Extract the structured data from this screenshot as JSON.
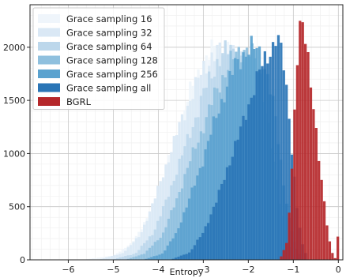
{
  "chart_data": {
    "type": "histogram",
    "title": "",
    "xlabel": "Entropy",
    "ylabel": "",
    "xlim": [
      -6.85,
      0.1
    ],
    "ylim": [
      0,
      2400
    ],
    "xticks": [
      -6,
      -5,
      -4,
      -3,
      -2,
      -1,
      0
    ],
    "xtick_labels": [
      "−6",
      "−5",
      "−4",
      "−3",
      "−2",
      "−1",
      "0"
    ],
    "yticks": [
      0,
      500,
      1000,
      1500,
      2000
    ],
    "ytick_labels": [
      "0",
      "500",
      "1000",
      "1500",
      "2000"
    ],
    "grid": true,
    "legend_position": "upper-left",
    "bin_width": 0.06,
    "series": [
      {
        "name": "Grace sampling 16",
        "color": "#eff5fb",
        "points": [
          [
            -5.6,
            5
          ],
          [
            -5.0,
            40
          ],
          [
            -4.6,
            150
          ],
          [
            -4.2,
            420
          ],
          [
            -3.9,
            780
          ],
          [
            -3.6,
            1150
          ],
          [
            -3.4,
            1450
          ],
          [
            -3.2,
            1680
          ],
          [
            -3.0,
            1850
          ],
          [
            -2.8,
            1970
          ],
          [
            -2.6,
            2000
          ],
          [
            -2.4,
            1960
          ],
          [
            -2.2,
            1800
          ],
          [
            -2.0,
            1500
          ],
          [
            -1.8,
            1000
          ],
          [
            -1.6,
            550
          ],
          [
            -1.4,
            240
          ],
          [
            -1.2,
            80
          ],
          [
            -1.05,
            10
          ]
        ]
      },
      {
        "name": "Grace sampling 32",
        "color": "#dae8f5",
        "points": [
          [
            -5.3,
            5
          ],
          [
            -4.8,
            60
          ],
          [
            -4.4,
            230
          ],
          [
            -4.1,
            550
          ],
          [
            -3.8,
            920
          ],
          [
            -3.5,
            1300
          ],
          [
            -3.2,
            1600
          ],
          [
            -3.0,
            1800
          ],
          [
            -2.8,
            1920
          ],
          [
            -2.6,
            1970
          ],
          [
            -2.45,
            1990
          ],
          [
            -2.3,
            1950
          ],
          [
            -2.1,
            1820
          ],
          [
            -1.9,
            1500
          ],
          [
            -1.75,
            1100
          ],
          [
            -1.6,
            650
          ],
          [
            -1.45,
            300
          ],
          [
            -1.3,
            110
          ],
          [
            -1.15,
            20
          ]
        ]
      },
      {
        "name": "Grace sampling 64",
        "color": "#bcd7eb",
        "points": [
          [
            -5.0,
            5
          ],
          [
            -4.5,
            60
          ],
          [
            -4.1,
            260
          ],
          [
            -3.8,
            580
          ],
          [
            -3.5,
            950
          ],
          [
            -3.2,
            1300
          ],
          [
            -2.95,
            1620
          ],
          [
            -2.7,
            1850
          ],
          [
            -2.5,
            1960
          ],
          [
            -2.35,
            1990
          ],
          [
            -2.2,
            1960
          ],
          [
            -2.05,
            1860
          ],
          [
            -1.9,
            1650
          ],
          [
            -1.75,
            1300
          ],
          [
            -1.6,
            900
          ],
          [
            -1.45,
            500
          ],
          [
            -1.3,
            200
          ],
          [
            -1.15,
            40
          ]
        ]
      },
      {
        "name": "Grace sampling 128",
        "color": "#8fc0de",
        "points": [
          [
            -4.7,
            5
          ],
          [
            -4.3,
            60
          ],
          [
            -3.9,
            240
          ],
          [
            -3.6,
            560
          ],
          [
            -3.3,
            920
          ],
          [
            -3.0,
            1250
          ],
          [
            -2.75,
            1550
          ],
          [
            -2.5,
            1780
          ],
          [
            -2.3,
            1920
          ],
          [
            -2.15,
            1980
          ],
          [
            -2.0,
            1990
          ],
          [
            -1.9,
            1920
          ],
          [
            -1.75,
            1750
          ],
          [
            -1.6,
            1400
          ],
          [
            -1.45,
            950
          ],
          [
            -1.3,
            520
          ],
          [
            -1.15,
            200
          ],
          [
            -1.0,
            40
          ]
        ]
      },
      {
        "name": "Grace sampling 256",
        "color": "#5aa2cf",
        "points": [
          [
            -4.3,
            5
          ],
          [
            -3.9,
            60
          ],
          [
            -3.6,
            250
          ],
          [
            -3.3,
            580
          ],
          [
            -3.0,
            950
          ],
          [
            -2.75,
            1300
          ],
          [
            -2.5,
            1600
          ],
          [
            -2.3,
            1820
          ],
          [
            -2.1,
            1940
          ],
          [
            -1.95,
            1990
          ],
          [
            -1.8,
            1980
          ],
          [
            -1.7,
            1920
          ],
          [
            -1.55,
            1700
          ],
          [
            -1.4,
            1350
          ],
          [
            -1.25,
            850
          ],
          [
            -1.1,
            400
          ],
          [
            -0.95,
            130
          ],
          [
            -0.8,
            20
          ]
        ]
      },
      {
        "name": "Grace sampling all",
        "color": "#2a75b6",
        "points": [
          [
            -3.7,
            5
          ],
          [
            -3.3,
            70
          ],
          [
            -3.0,
            260
          ],
          [
            -2.7,
            560
          ],
          [
            -2.45,
            880
          ],
          [
            -2.2,
            1180
          ],
          [
            -2.0,
            1450
          ],
          [
            -1.85,
            1650
          ],
          [
            -1.7,
            1820
          ],
          [
            -1.55,
            1940
          ],
          [
            -1.45,
            2020
          ],
          [
            -1.38,
            2110
          ],
          [
            -1.3,
            2020
          ],
          [
            -1.2,
            1800
          ],
          [
            -1.1,
            1400
          ],
          [
            -1.0,
            900
          ],
          [
            -0.9,
            450
          ],
          [
            -0.8,
            150
          ],
          [
            -0.7,
            30
          ]
        ]
      },
      {
        "name": "BGRL",
        "color": "#b5272a",
        "points": [
          [
            -1.3,
            5
          ],
          [
            -1.15,
            150
          ],
          [
            -1.05,
            650
          ],
          [
            -0.98,
            1300
          ],
          [
            -0.92,
            1900
          ],
          [
            -0.86,
            2220
          ],
          [
            -0.8,
            2280
          ],
          [
            -0.75,
            2150
          ],
          [
            -0.7,
            1950
          ],
          [
            -0.62,
            1650
          ],
          [
            -0.54,
            1400
          ],
          [
            -0.46,
            1100
          ],
          [
            -0.38,
            800
          ],
          [
            -0.3,
            500
          ],
          [
            -0.22,
            230
          ],
          [
            -0.15,
            80
          ],
          [
            -0.08,
            20
          ],
          [
            -0.05,
            10
          ],
          [
            -0.02,
            200
          ],
          [
            0.0,
            230
          ]
        ]
      }
    ]
  }
}
